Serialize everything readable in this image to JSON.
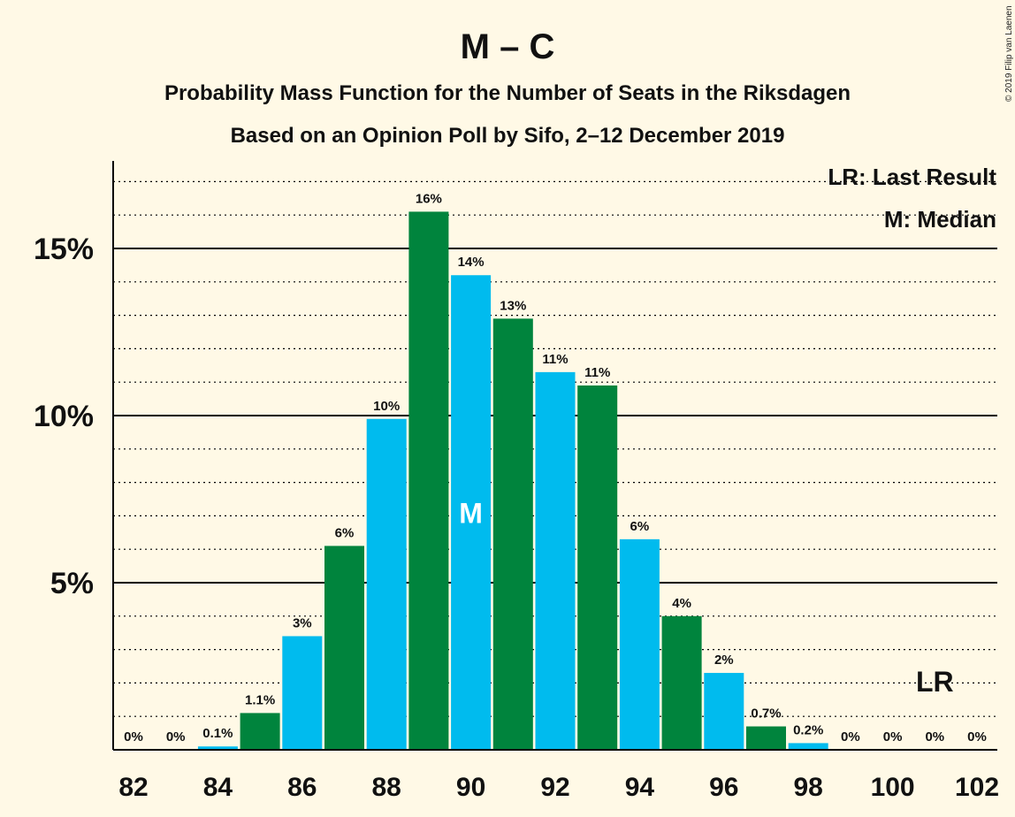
{
  "title": "M – C",
  "subtitle1": "Probability Mass Function for the Number of Seats in the Riksdagen",
  "subtitle2": "Based on an Opinion Poll by Sifo, 2–12 December 2019",
  "copyright": "© 2019 Filip van Laenen",
  "legend": {
    "last_result": "LR: Last Result",
    "median": "M: Median"
  },
  "colors": {
    "green": "#00843d",
    "blue": "#00bbee",
    "background": "#fff9e6"
  },
  "chart_data": {
    "type": "bar",
    "categories": [
      82,
      83,
      84,
      85,
      86,
      87,
      88,
      89,
      90,
      91,
      92,
      93,
      94,
      95,
      96,
      97,
      98,
      99,
      100,
      101,
      102
    ],
    "values": [
      0,
      0,
      0.1,
      1.1,
      3.4,
      6.1,
      9.9,
      16.1,
      14.2,
      12.9,
      11.3,
      10.9,
      6.3,
      4.0,
      2.3,
      0.7,
      0.2,
      0,
      0,
      0,
      0
    ],
    "labels": [
      "0%",
      "0%",
      "0.1%",
      "1.1%",
      "3%",
      "6%",
      "10%",
      "16%",
      "14%",
      "13%",
      "11%",
      "11%",
      "6%",
      "4%",
      "2%",
      "0.7%",
      "0.2%",
      "0%",
      "0%",
      "0%",
      "0%"
    ],
    "x_tick_labels": [
      "82",
      "84",
      "86",
      "88",
      "90",
      "92",
      "94",
      "96",
      "98",
      "100",
      "102"
    ],
    "y_ticks": [
      5,
      10,
      15
    ],
    "y_tick_labels": [
      "5%",
      "10%",
      "15%"
    ],
    "ylim": [
      0,
      17.5
    ],
    "minor_grid_step": 1,
    "median": 90,
    "median_label": "M",
    "last_result": 101,
    "last_result_label": "LR"
  }
}
